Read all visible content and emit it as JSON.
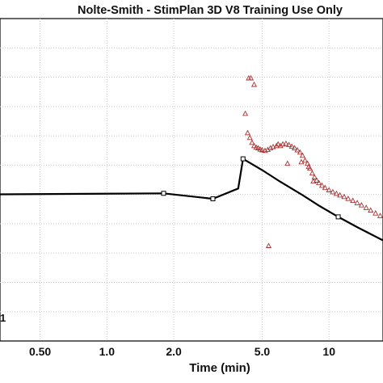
{
  "chart_data": {
    "type": "scatter",
    "title": "Nolte-Smith - StimPlan 3D V8 Training Use Only",
    "xlabel": "Time (min)",
    "ylabel": "",
    "x_scale": "log",
    "xlim": [
      0.33,
      17.5
    ],
    "ylim": [
      0,
      1
    ],
    "grid": true,
    "x_tick_labels": [
      "0.50",
      "1.0",
      "2.0",
      "5.0",
      "10"
    ],
    "x_ticks": [
      0.5,
      1.0,
      2.0,
      5.0,
      10.0
    ],
    "x_grid": [
      0.5,
      1.0,
      2.0,
      5.0,
      10.0
    ],
    "left_edge_label": "1",
    "series": [
      {
        "style": "line-square",
        "color": "#000000",
        "points": [
          [
            0.33,
            0.455
          ],
          [
            1.8,
            0.458
          ],
          [
            3.0,
            0.441
          ],
          [
            3.9,
            0.473
          ],
          [
            4.1,
            0.565
          ],
          [
            5.0,
            0.53
          ],
          [
            6.0,
            0.495
          ],
          [
            7.5,
            0.455
          ],
          [
            9.0,
            0.42
          ],
          [
            11.0,
            0.385
          ],
          [
            13.5,
            0.352
          ],
          [
            17.5,
            0.312
          ]
        ],
        "markers": [
          [
            1.8,
            0.458
          ],
          [
            3.0,
            0.441
          ],
          [
            4.1,
            0.565
          ],
          [
            11.0,
            0.385
          ]
        ]
      },
      {
        "style": "triangle",
        "color": "#a83232",
        "points": [
          [
            4.35,
            0.815
          ],
          [
            4.45,
            0.815
          ],
          [
            4.6,
            0.795
          ],
          [
            4.2,
            0.705
          ],
          [
            4.3,
            0.645
          ],
          [
            4.4,
            0.63
          ],
          [
            4.5,
            0.615
          ],
          [
            4.6,
            0.605
          ],
          [
            4.7,
            0.6
          ],
          [
            4.8,
            0.598
          ],
          [
            4.9,
            0.594
          ],
          [
            5.0,
            0.592
          ],
          [
            5.15,
            0.59
          ],
          [
            5.3,
            0.593
          ],
          [
            5.45,
            0.598
          ],
          [
            5.6,
            0.602
          ],
          [
            5.8,
            0.605
          ],
          [
            5.9,
            0.61
          ],
          [
            6.05,
            0.605
          ],
          [
            6.2,
            0.61
          ],
          [
            6.4,
            0.612
          ],
          [
            6.6,
            0.608
          ],
          [
            6.8,
            0.603
          ],
          [
            7.0,
            0.598
          ],
          [
            7.2,
            0.592
          ],
          [
            7.4,
            0.585
          ],
          [
            7.6,
            0.575
          ],
          [
            7.8,
            0.56
          ],
          [
            8.0,
            0.55
          ],
          [
            8.2,
            0.535
          ],
          [
            8.4,
            0.52
          ],
          [
            8.6,
            0.508
          ],
          [
            8.8,
            0.498
          ],
          [
            9.0,
            0.49
          ],
          [
            9.3,
            0.482
          ],
          [
            9.6,
            0.475
          ],
          [
            10.0,
            0.468
          ],
          [
            10.4,
            0.462
          ],
          [
            10.8,
            0.457
          ],
          [
            11.2,
            0.452
          ],
          [
            11.7,
            0.447
          ],
          [
            12.2,
            0.441
          ],
          [
            12.8,
            0.435
          ],
          [
            13.4,
            0.428
          ],
          [
            14.0,
            0.421
          ],
          [
            14.7,
            0.413
          ],
          [
            15.4,
            0.405
          ],
          [
            16.2,
            0.396
          ],
          [
            17.0,
            0.388
          ],
          [
            6.5,
            0.55
          ],
          [
            7.5,
            0.555
          ],
          [
            8.1,
            0.54
          ],
          [
            8.5,
            0.495
          ],
          [
            5.35,
            0.295
          ]
        ]
      }
    ]
  }
}
